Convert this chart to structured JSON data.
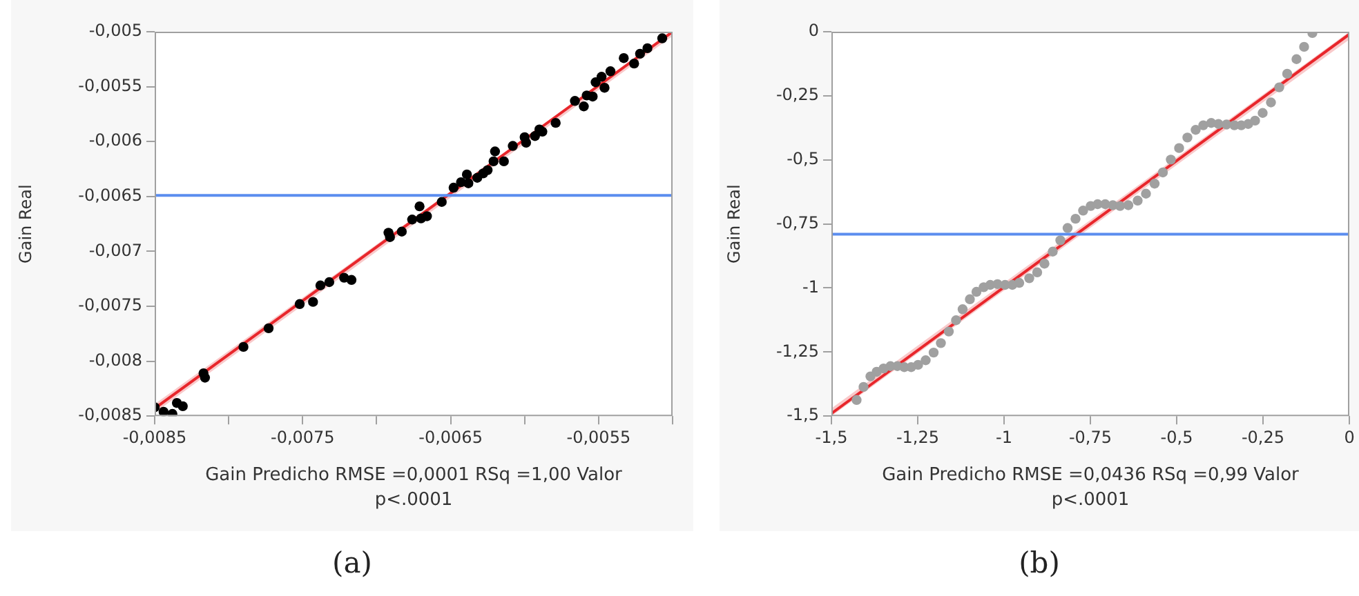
{
  "chart_data": [
    {
      "type": "scatter",
      "xlabel": "Gain Predicho RMSE =0,0001 RSq =1,00 Valor p<.0001",
      "ylabel": "Gain Real",
      "annotations": [
        "(a)"
      ],
      "xlim": [
        -0.0085,
        -0.005
      ],
      "xticks": [
        {
          "value": -0.0085,
          "label": "-0,0085"
        },
        {
          "value": -0.008,
          "label": null
        },
        {
          "value": -0.0075,
          "label": "-0,0075"
        },
        {
          "value": -0.007,
          "label": null
        },
        {
          "value": -0.0065,
          "label": "-0,0065"
        },
        {
          "value": -0.006,
          "label": null
        },
        {
          "value": -0.0055,
          "label": "-0,0055"
        },
        {
          "value": -0.005,
          "label": null
        }
      ],
      "ylim": [
        -0.0085,
        -0.005
      ],
      "yticks": [
        {
          "value": -0.0085,
          "label": "-0,0085"
        },
        {
          "value": -0.008,
          "label": "-0,008"
        },
        {
          "value": -0.0075,
          "label": "-0,0075"
        },
        {
          "value": -0.007,
          "label": "-0,007"
        },
        {
          "value": -0.0065,
          "label": "-0,0065"
        },
        {
          "value": -0.006,
          "label": "-0,006"
        },
        {
          "value": -0.0055,
          "label": "-0,0055"
        },
        {
          "value": -0.005,
          "label": "-0,005"
        }
      ],
      "marker": "circle",
      "ref_lines": [
        {
          "axis": "y",
          "value": -0.00649,
          "color": "#5b8def"
        }
      ],
      "series": [
        {
          "type": "scatter",
          "color": "#000000",
          "x": [
            -0.0085,
            -0.00844,
            -0.00838,
            -0.00835,
            -0.00831,
            -0.00817,
            -0.00816,
            -0.0079,
            -0.00773,
            -0.00752,
            -0.00743,
            -0.00738,
            -0.00732,
            -0.00722,
            -0.00717,
            -0.00692,
            -0.00691,
            -0.00683,
            -0.00676,
            -0.00671,
            -0.0067,
            -0.00666,
            -0.00656,
            -0.00648,
            -0.00643,
            -0.00639,
            -0.00638,
            -0.00632,
            -0.00628,
            -0.00625,
            -0.00621,
            -0.0062,
            -0.00614,
            -0.00608,
            -0.006,
            -0.00599,
            -0.00593,
            -0.0059,
            -0.00588,
            -0.00579,
            -0.00566,
            -0.0056,
            -0.00558,
            -0.00554,
            -0.00552,
            -0.00548,
            -0.00546,
            -0.00542,
            -0.00533,
            -0.00526,
            -0.00522,
            -0.00517,
            -0.00507
          ],
          "values": [
            -0.00842,
            -0.00846,
            -0.00848,
            -0.00838,
            -0.00841,
            -0.00811,
            -0.00815,
            -0.00787,
            -0.0077,
            -0.00748,
            -0.00746,
            -0.00731,
            -0.00728,
            -0.00724,
            -0.00726,
            -0.00683,
            -0.00687,
            -0.00682,
            -0.00671,
            -0.00659,
            -0.0067,
            -0.00668,
            -0.00655,
            -0.00642,
            -0.00637,
            -0.0063,
            -0.00638,
            -0.00633,
            -0.00629,
            -0.00626,
            -0.00618,
            -0.00609,
            -0.00618,
            -0.00604,
            -0.00596,
            -0.00601,
            -0.00595,
            -0.00589,
            -0.00591,
            -0.00583,
            -0.00563,
            -0.00568,
            -0.00558,
            -0.00559,
            -0.00546,
            -0.00541,
            -0.00551,
            -0.00536,
            -0.00524,
            -0.00529,
            -0.0052,
            -0.00515,
            -0.00506
          ]
        },
        {
          "type": "line",
          "color": "#e8262b",
          "line_style": "solid",
          "marker": "none",
          "x": [
            -0.0085,
            -0.005
          ],
          "values": [
            -0.00843,
            -0.005
          ],
          "lower": [
            -0.00847,
            -0.00504
          ],
          "upper": [
            -0.00839,
            -0.005
          ]
        }
      ]
    },
    {
      "type": "scatter",
      "xlabel": "Gain Predicho RMSE =0,0436 RSq =0,99 Valor p<.0001",
      "ylabel": "Gain Real",
      "annotations": [
        "(b)"
      ],
      "xlim": [
        -1.5,
        0
      ],
      "xticks": [
        {
          "value": -1.5,
          "label": "-1,5"
        },
        {
          "value": -1.25,
          "label": "-1,25"
        },
        -1,
        {
          "value": -0.75,
          "label": "-0,75"
        },
        {
          "value": -0.5,
          "label": "-0,5"
        },
        {
          "value": -0.25,
          "label": "-0,25"
        },
        0
      ],
      "ylim": [
        -1.5,
        0
      ],
      "yticks": [
        {
          "value": -1.5,
          "label": "-1,5"
        },
        {
          "value": -1.25,
          "label": "-1,25"
        },
        -1,
        {
          "value": -0.75,
          "label": "-0,75"
        },
        {
          "value": -0.5,
          "label": "-0,5"
        },
        {
          "value": -0.25,
          "label": "-0,25"
        },
        0
      ],
      "marker": "circle",
      "ref_lines": [
        {
          "axis": "y",
          "value": -0.79,
          "color": "#5b8def"
        }
      ],
      "series": [
        {
          "type": "scatter",
          "color": "#a0a0a0",
          "x": [
            -1.427,
            -1.407,
            -1.387,
            -1.369,
            -1.349,
            -1.329,
            -1.309,
            -1.289,
            -1.269,
            -1.249,
            -1.227,
            -1.204,
            -1.183,
            -1.16,
            -1.139,
            -1.12,
            -1.099,
            -1.08,
            -1.059,
            -1.04,
            -1.019,
            -0.997,
            -0.976,
            -0.956,
            -0.927,
            -0.904,
            -0.883,
            -0.859,
            -0.837,
            -0.816,
            -0.793,
            -0.771,
            -0.749,
            -0.729,
            -0.707,
            -0.685,
            -0.664,
            -0.64,
            -0.613,
            -0.589,
            -0.564,
            -0.54,
            -0.517,
            -0.493,
            -0.469,
            -0.445,
            -0.423,
            -0.4,
            -0.379,
            -0.356,
            -0.333,
            -0.313,
            -0.293,
            -0.273,
            -0.251,
            -0.227,
            -0.203,
            -0.18,
            -0.153,
            -0.131,
            -0.107
          ],
          "values": [
            -1.437,
            -1.386,
            -1.345,
            -1.327,
            -1.314,
            -1.305,
            -1.305,
            -1.309,
            -1.309,
            -1.3,
            -1.282,
            -1.252,
            -1.215,
            -1.17,
            -1.126,
            -1.083,
            -1.044,
            -1.015,
            -0.997,
            -0.988,
            -0.985,
            -0.988,
            -0.988,
            -0.98,
            -0.962,
            -0.939,
            -0.905,
            -0.858,
            -0.814,
            -0.766,
            -0.73,
            -0.698,
            -0.68,
            -0.673,
            -0.673,
            -0.677,
            -0.68,
            -0.677,
            -0.659,
            -0.632,
            -0.593,
            -0.549,
            -0.499,
            -0.454,
            -0.413,
            -0.383,
            -0.365,
            -0.356,
            -0.36,
            -0.362,
            -0.365,
            -0.365,
            -0.36,
            -0.347,
            -0.317,
            -0.276,
            -0.217,
            -0.164,
            -0.107,
            -0.059,
            -0.005
          ]
        },
        {
          "type": "line",
          "color": "#e8262b",
          "line_style": "solid",
          "marker": "none",
          "x": [
            -1.5,
            0
          ],
          "values": [
            -1.49,
            -0.01
          ],
          "lower": [
            -1.5,
            -0.03
          ],
          "upper": [
            -1.47,
            0.0
          ]
        }
      ]
    }
  ]
}
